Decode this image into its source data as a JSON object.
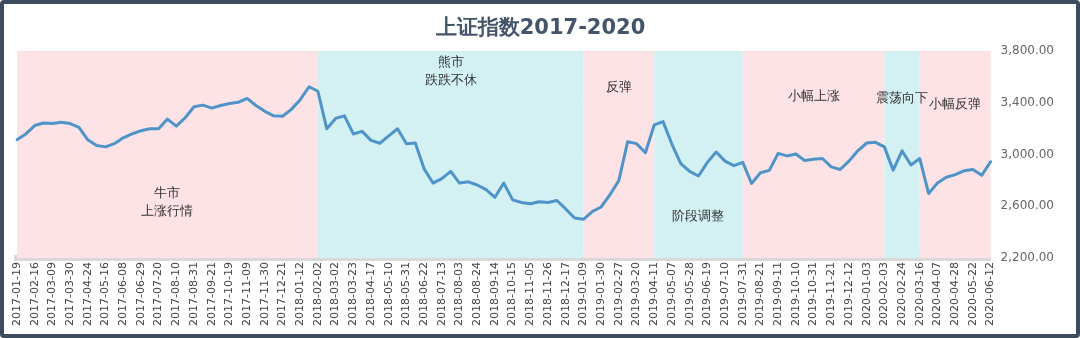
{
  "chart_data": {
    "type": "line",
    "title": "上证指数2017-2020",
    "categories": [
      "2017-01-19",
      null,
      "2017-02-16",
      null,
      "2017-03-09",
      null,
      "2017-03-30",
      null,
      "2017-04-24",
      null,
      "2017-05-16",
      null,
      "2017-06-08",
      null,
      "2017-06-29",
      null,
      "2017-07-20",
      null,
      "2017-08-10",
      null,
      "2017-08-31",
      null,
      "2017-09-21",
      null,
      "2017-10-19",
      null,
      "2017-11-09",
      null,
      "2017-11-30",
      null,
      "2017-12-21",
      null,
      "2018-01-12",
      null,
      "2018-02-02",
      null,
      "2018-03-02",
      null,
      "2018-03-23",
      null,
      "2018-04-17",
      null,
      "2018-05-10",
      null,
      "2018-05-31",
      null,
      "2018-06-22",
      null,
      "2018-07-13",
      null,
      "2018-08-03",
      null,
      "2018-08-24",
      null,
      "2018-09-14",
      null,
      "2018-10-15",
      null,
      "2018-11-05",
      null,
      "2018-11-26",
      null,
      "2018-12-17",
      null,
      "2019-01-09",
      null,
      "2019-01-30",
      null,
      "2019-02-27",
      null,
      "2019-03-20",
      null,
      "2019-04-11",
      null,
      "2019-05-07",
      null,
      "2019-05-28",
      null,
      "2019-06-19",
      null,
      "2019-07-10",
      null,
      "2019-07-31",
      null,
      "2019-08-21",
      null,
      "2019-09-11",
      null,
      "2019-10-10",
      null,
      "2019-10-31",
      null,
      "2019-11-21",
      null,
      "2019-12-12",
      null,
      "2020-01-03",
      null,
      "2020-02-03",
      null,
      "2020-02-24",
      null,
      "2020-03-16",
      null,
      "2020-04-07",
      null,
      "2020-04-28",
      null,
      "2020-05-22",
      null,
      "2020-06-12"
    ],
    "series": [
      {
        "color": "#4f94c9",
        "values": [
          3115,
          3160,
          3225,
          3245,
          3240,
          3250,
          3240,
          3210,
          3115,
          3070,
          3060,
          3085,
          3130,
          3160,
          3185,
          3200,
          3200,
          3275,
          3220,
          3285,
          3370,
          3383,
          3360,
          3380,
          3395,
          3405,
          3435,
          3380,
          3335,
          3300,
          3297,
          3350,
          3425,
          3525,
          3490,
          3200,
          3280,
          3300,
          3160,
          3180,
          3110,
          3088,
          3145,
          3200,
          3085,
          3090,
          2890,
          2780,
          2815,
          2870,
          2780,
          2790,
          2765,
          2730,
          2670,
          2780,
          2650,
          2630,
          2620,
          2635,
          2630,
          2645,
          2580,
          2510,
          2500,
          2560,
          2595,
          2690,
          2800,
          3100,
          3085,
          3015,
          3230,
          3255,
          3080,
          2930,
          2870,
          2835,
          2940,
          3020,
          2950,
          2915,
          2940,
          2777,
          2860,
          2878,
          3010,
          2990,
          3005,
          2955,
          2965,
          2970,
          2905,
          2885,
          2950,
          3030,
          3090,
          3095,
          3060,
          2880,
          3030,
          2920,
          2970,
          2700,
          2780,
          2825,
          2845,
          2875,
          2885,
          2840,
          2945
        ]
      }
    ],
    "ylim": [
      2200,
      3800
    ],
    "yticks": [
      {
        "value": 2200,
        "label": "2,200.00"
      },
      {
        "value": 2600,
        "label": "2,600.00"
      },
      {
        "value": 3000,
        "label": "3,000.00"
      },
      {
        "value": 3400,
        "label": "3,400.00"
      },
      {
        "value": 3800,
        "label": "3,800.00"
      }
    ],
    "grid": "y",
    "legend": false,
    "marker": "none",
    "line_style": "solid",
    "bands": [
      {
        "axis": "x",
        "from": "2017-01-19",
        "to": "2018-02-02",
        "color": "#fde3e6",
        "label": "牛市上涨行情"
      },
      {
        "axis": "x",
        "from": "2018-02-02",
        "to": "2019-01-09",
        "color": "#d3f1f3",
        "label": "熊市跌跌不休"
      },
      {
        "axis": "x",
        "from": "2019-01-09",
        "to": "2019-04-11",
        "color": "#fde3e6",
        "label": "反弹"
      },
      {
        "axis": "x",
        "from": "2019-04-11",
        "to": "2019-07-31",
        "color": "#d3f1f3",
        "label": "阶段调整"
      },
      {
        "axis": "x",
        "from": "2019-07-31",
        "to": "2020-02-03",
        "color": "#fde3e6",
        "label": "小幅上涨"
      },
      {
        "axis": "x",
        "from": "2020-02-03",
        "to": "2020-03-16",
        "color": "#d3f1f3",
        "label": "震荡向下"
      },
      {
        "axis": "x",
        "from": "2020-03-16",
        "to": "2020-06-12",
        "color": "#fde3e6",
        "label": "小幅反弹"
      }
    ]
  }
}
